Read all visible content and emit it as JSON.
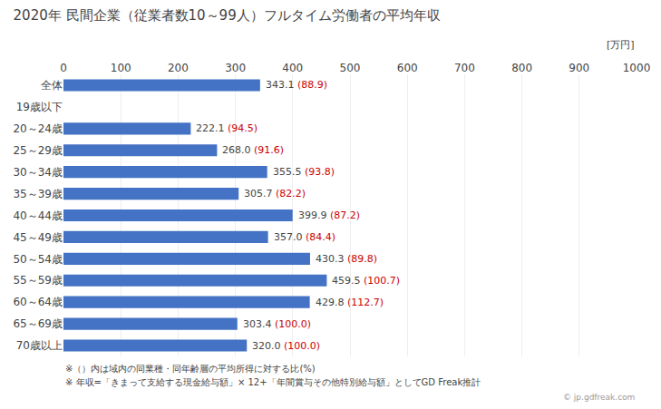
{
  "chart_data": {
    "type": "bar",
    "orientation": "horizontal",
    "title": "2020年 民間企業（従業者数10～99人）フルタイム労働者の平均年収",
    "categories": [
      "全体",
      "19歳以下",
      "20～24歳",
      "25～29歳",
      "30～34歳",
      "35～39歳",
      "40～44歳",
      "45～49歳",
      "50～54歳",
      "55～59歳",
      "60～64歳",
      "65～69歳",
      "70歳以上"
    ],
    "values": [
      343.1,
      0,
      222.1,
      268.0,
      355.5,
      305.7,
      399.9,
      357.0,
      430.3,
      459.5,
      429.8,
      303.4,
      320.0
    ],
    "value_labels": [
      "343.1",
      null,
      "222.1",
      "268.0",
      "355.5",
      "305.7",
      "399.9",
      "357.0",
      "430.3",
      "459.5",
      "429.8",
      "303.4",
      "320.0"
    ],
    "ratios": [
      88.9,
      null,
      94.5,
      91.6,
      93.8,
      82.2,
      87.2,
      84.4,
      89.8,
      100.7,
      112.7,
      100.0,
      100.0
    ],
    "ratio_labels": [
      "(88.9)",
      null,
      "(94.5)",
      "(91.6)",
      "(93.8)",
      "(82.2)",
      "(87.2)",
      "(84.4)",
      "(89.8)",
      "(100.7)",
      "(112.7)",
      "(100.0)",
      "(100.0)"
    ],
    "ratio_color": "#CC0000",
    "color": "#4472C4",
    "data_labels": true,
    "xlim": [
      0,
      1000
    ],
    "xticks": [
      0,
      100,
      200,
      300,
      400,
      500,
      600,
      700,
      800,
      900,
      1000
    ],
    "grid": true,
    "unit_label": "[万円]",
    "notes": [
      "※（）内は域内の同業種・同年齢層の平均所得に対する比(%)",
      "※ 年収=「きまって支給する現金給与額」× 12+「年間賞与その他特別給与額」としてGD Freak推計"
    ],
    "watermark": "© jp.gdfreak.com"
  }
}
